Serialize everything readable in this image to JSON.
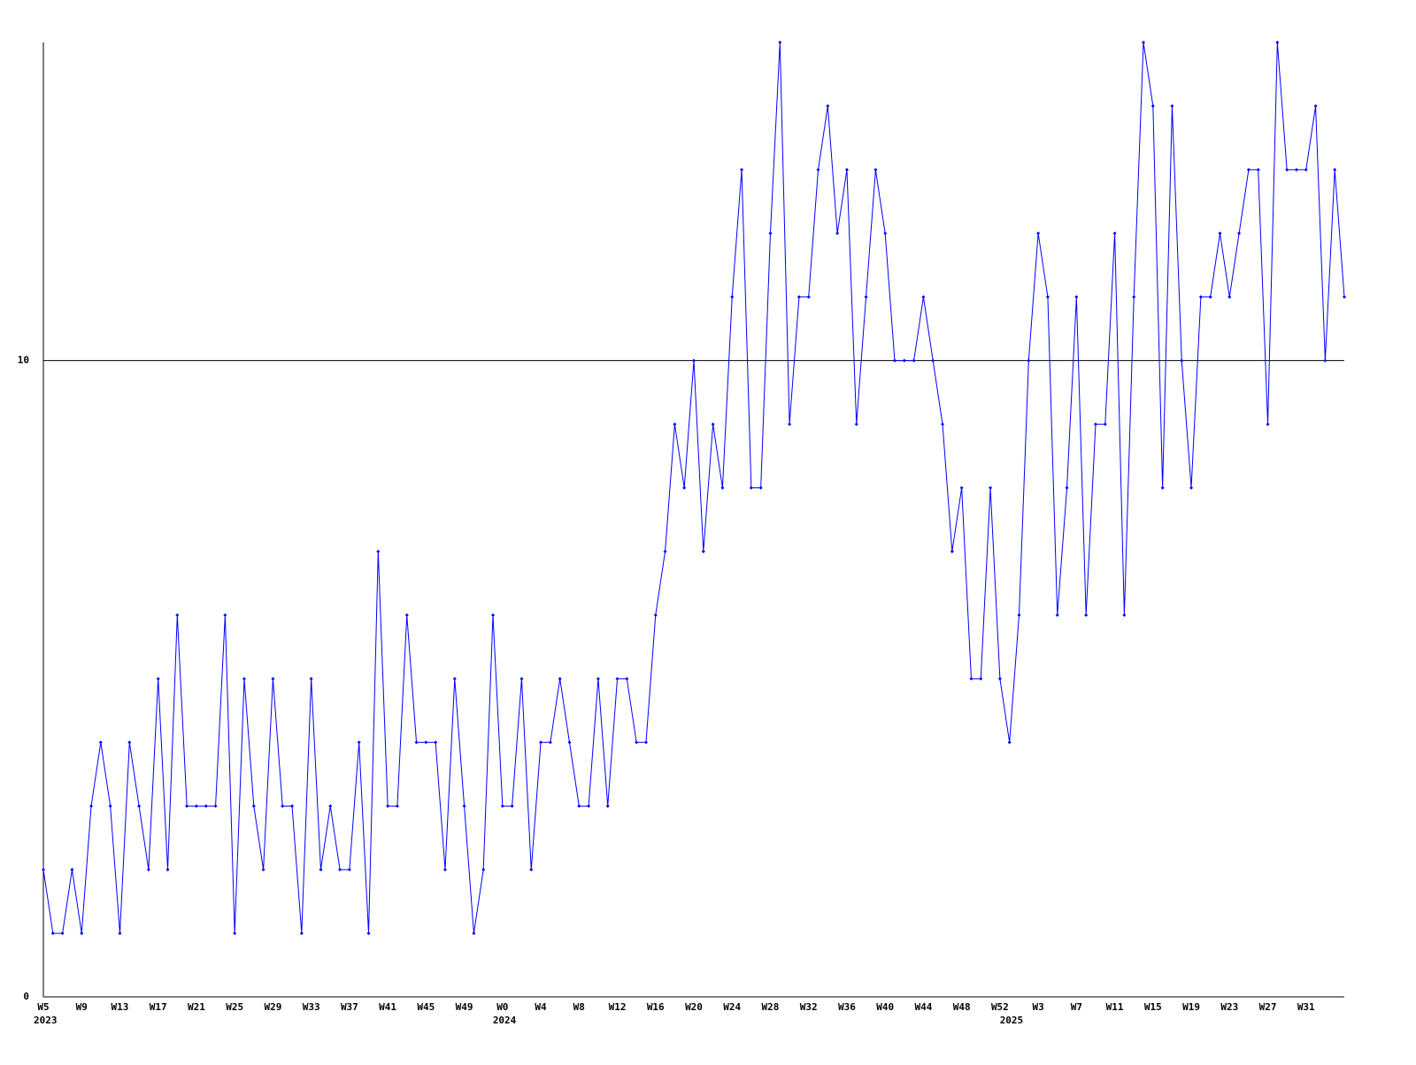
{
  "chart_data": {
    "type": "line",
    "categories": [
      "W5",
      null,
      null,
      null,
      "W9",
      null,
      null,
      null,
      "W13",
      null,
      null,
      null,
      "W17",
      null,
      null,
      null,
      "W21",
      null,
      null,
      null,
      "W25",
      null,
      null,
      null,
      "W29",
      null,
      null,
      null,
      "W33",
      null,
      null,
      null,
      "W37",
      null,
      null,
      null,
      "W41",
      null,
      null,
      null,
      "W45",
      null,
      null,
      null,
      "W49",
      null,
      null,
      null,
      "W0",
      null,
      null,
      null,
      "W4",
      null,
      null,
      null,
      "W8",
      null,
      null,
      null,
      "W12",
      null,
      null,
      null,
      "W16",
      null,
      null,
      null,
      "W20",
      null,
      null,
      null,
      "W24",
      null,
      null,
      null,
      "W28",
      null,
      null,
      null,
      "W32",
      null,
      null,
      null,
      "W36",
      null,
      null,
      null,
      "W40",
      null,
      null,
      null,
      "W44",
      null,
      null,
      null,
      "W48",
      null,
      null,
      null,
      "W52",
      null,
      null,
      null,
      "W3",
      null,
      null,
      null,
      "W7",
      null,
      null,
      null,
      "W11",
      null,
      null,
      null,
      "W15",
      null,
      null,
      null,
      "W19",
      null,
      null,
      null,
      "W23",
      null,
      null,
      null,
      "W27",
      null,
      null,
      null,
      "W31",
      null,
      null,
      null,
      null
    ],
    "years": [
      "2023",
      null,
      null,
      null,
      null,
      null,
      null,
      null,
      null,
      null,
      null,
      null,
      null,
      null,
      null,
      null,
      null,
      null,
      null,
      null,
      null,
      null,
      null,
      null,
      null,
      null,
      null,
      null,
      null,
      null,
      null,
      null,
      null,
      null,
      null,
      null,
      null,
      null,
      null,
      null,
      null,
      null,
      null,
      null,
      null,
      null,
      null,
      null,
      "2024",
      null,
      null,
      null,
      null,
      null,
      null,
      null,
      null,
      null,
      null,
      null,
      null,
      null,
      null,
      null,
      null,
      null,
      null,
      null,
      null,
      null,
      null,
      null,
      null,
      null,
      null,
      null,
      null,
      null,
      null,
      null,
      null,
      null,
      null,
      null,
      null,
      null,
      null,
      null,
      null,
      null,
      null,
      null,
      null,
      null,
      null,
      null,
      null,
      null,
      null,
      null,
      null,
      "2025",
      null,
      null,
      null,
      null,
      null,
      null,
      null,
      null,
      null,
      null,
      null,
      null,
      null,
      null,
      null,
      null,
      null,
      null,
      null,
      null,
      null,
      null,
      null,
      null,
      null,
      null,
      null,
      null,
      null,
      null,
      null,
      null,
      null,
      null,
      null
    ],
    "series": [
      {
        "color": "#0000ff",
        "values": [
          2,
          1,
          1,
          2,
          1,
          3,
          4,
          3,
          1,
          4,
          3,
          2,
          5,
          2,
          6,
          3,
          3,
          3,
          3,
          6,
          1,
          5,
          3,
          2,
          5,
          3,
          3,
          1,
          5,
          2,
          3,
          2,
          2,
          4,
          1,
          7,
          3,
          3,
          6,
          4,
          4,
          4,
          2,
          5,
          3,
          1,
          2,
          6,
          3,
          3,
          5,
          2,
          4,
          4,
          5,
          4,
          3,
          3,
          5,
          3,
          5,
          5,
          4,
          4,
          6,
          7,
          9,
          8,
          10,
          7,
          9,
          8,
          11,
          13,
          8,
          8,
          12,
          15,
          9,
          11,
          11,
          13,
          14,
          12,
          13,
          9,
          11,
          13,
          12,
          10,
          10,
          10,
          11,
          10,
          9,
          7,
          8,
          5,
          5,
          8,
          5,
          4,
          6,
          10,
          12,
          11,
          6,
          8,
          11,
          6,
          9,
          9,
          12,
          6,
          11,
          15,
          14,
          8,
          14,
          10,
          8,
          11,
          11,
          12,
          11,
          12,
          13,
          13,
          9,
          15,
          13,
          13,
          13,
          14,
          10,
          13,
          11
        ]
      }
    ],
    "ylim": [
      0,
      15
    ],
    "yticks": [
      0,
      10
    ],
    "grid": true
  }
}
